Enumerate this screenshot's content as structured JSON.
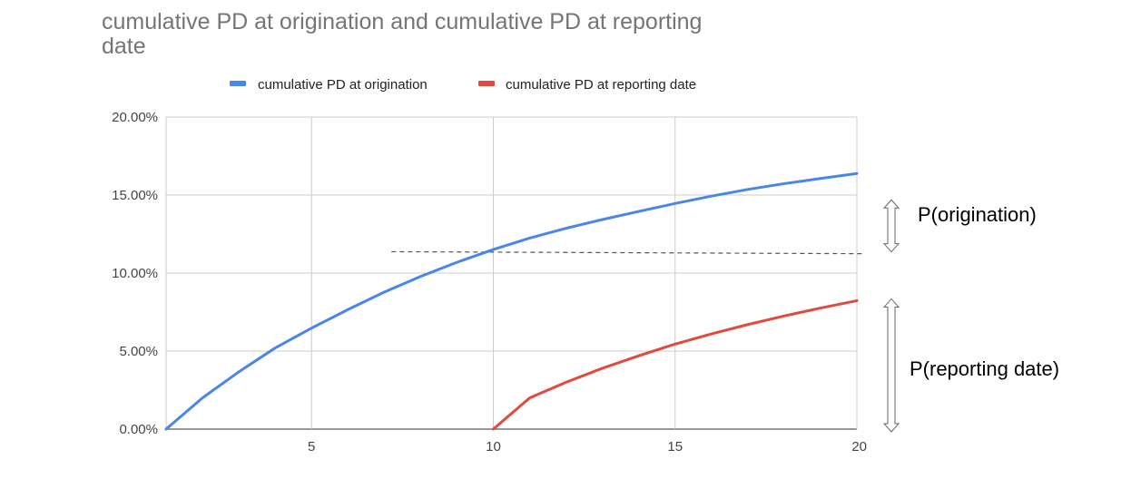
{
  "chart_data": {
    "type": "line",
    "title_lines": [
      "cumulative PD at origination and cumulative PD at reporting",
      "date"
    ],
    "xlabel": "",
    "ylabel": "",
    "xlim": [
      1,
      20
    ],
    "ylim": [
      0,
      0.2
    ],
    "x_ticks": [
      5,
      10,
      15,
      20
    ],
    "y_ticks": [
      0,
      0.05,
      0.1,
      0.15,
      0.2
    ],
    "y_tick_labels": [
      "0.00%",
      "5.00%",
      "10.00%",
      "15.00%",
      "20.00%"
    ],
    "grid": true,
    "legend_position": "top",
    "series": [
      {
        "name": "cumulative PD at origination",
        "color": "#4a86e8",
        "x": [
          1,
          2,
          3,
          4,
          5,
          6,
          7,
          8,
          9,
          10,
          11,
          12,
          13,
          14,
          15,
          16,
          17,
          18,
          19,
          20
        ],
        "values": [
          0.0,
          0.02,
          0.0367,
          0.052,
          0.0647,
          0.0766,
          0.0878,
          0.0978,
          0.1069,
          0.1151,
          0.1224,
          0.1287,
          0.1343,
          0.1395,
          0.1446,
          0.1493,
          0.1536,
          0.1573,
          0.1606,
          0.1638
        ]
      },
      {
        "name": "cumulative PD at reporting date",
        "color": "#e04a3f",
        "x": [
          10,
          11,
          12,
          13,
          14,
          15,
          16,
          17,
          18,
          19,
          20
        ],
        "values": [
          0.0,
          0.02,
          0.03,
          0.039,
          0.047,
          0.0545,
          0.061,
          0.067,
          0.0725,
          0.0776,
          0.0823
        ]
      }
    ],
    "reference_line": {
      "style": "dashed",
      "x": [
        7.2,
        20.2
      ],
      "y": [
        0.1137,
        0.1124
      ],
      "color": "#555555"
    },
    "annotations": [
      {
        "text": "P(origination)",
        "y_range": [
          0.1124,
          0.1638
        ]
      },
      {
        "text": "P(reporting date)",
        "y_range": [
          0.0,
          0.0823
        ]
      }
    ]
  }
}
